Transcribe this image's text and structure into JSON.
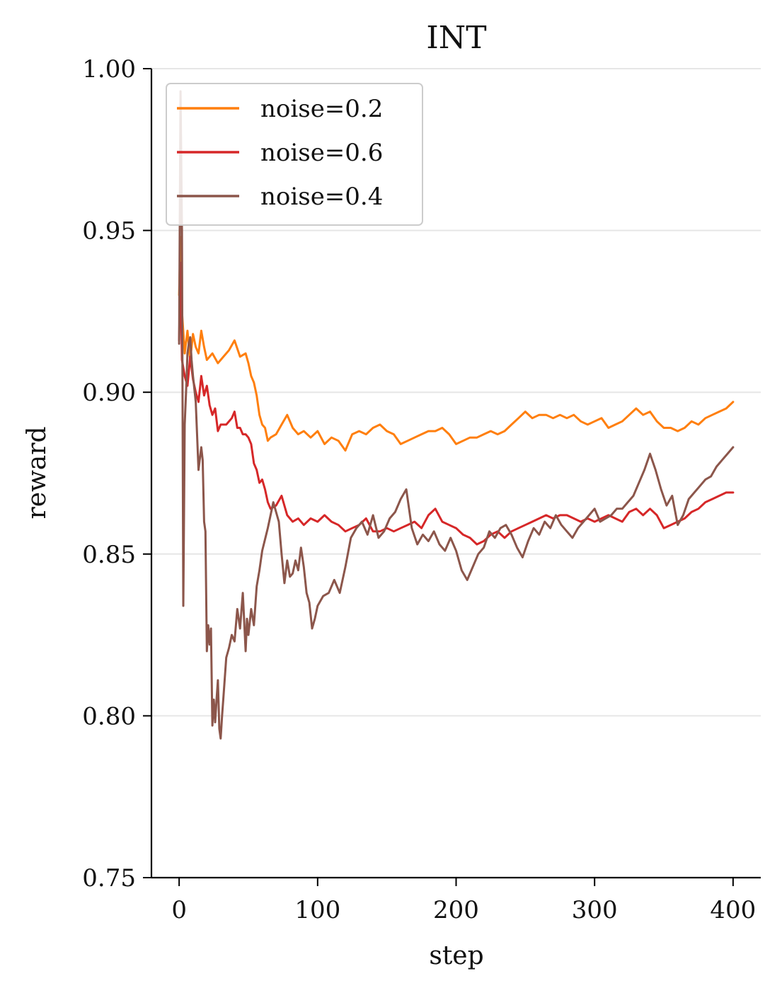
{
  "chart_data": {
    "type": "line",
    "title": "INT",
    "xlabel": "step",
    "ylabel": "reward",
    "xlim": [
      -20,
      420
    ],
    "ylim": [
      0.75,
      1.0
    ],
    "xticks": [
      0,
      100,
      200,
      300,
      400
    ],
    "xtick_labels": [
      "0",
      "100",
      "200",
      "300",
      "400"
    ],
    "yticks": [
      0.75,
      0.8,
      0.85,
      0.9,
      0.95,
      1.0
    ],
    "ytick_labels": [
      "0.75",
      "0.80",
      "0.85",
      "0.90",
      "0.95",
      "1.00"
    ],
    "grid": "horizontal",
    "legend_position": "top-left",
    "series": [
      {
        "name": "noise=0.2",
        "color": "#ff7f0e",
        "x": [
          0,
          1,
          2,
          4,
          6,
          8,
          10,
          12,
          14,
          16,
          18,
          20,
          24,
          28,
          32,
          36,
          40,
          44,
          48,
          50,
          52,
          54,
          56,
          58,
          60,
          62,
          64,
          66,
          70,
          74,
          78,
          82,
          86,
          90,
          95,
          100,
          105,
          110,
          115,
          120,
          125,
          130,
          135,
          140,
          145,
          150,
          155,
          160,
          165,
          170,
          175,
          180,
          185,
          190,
          195,
          200,
          205,
          210,
          215,
          220,
          225,
          230,
          235,
          240,
          245,
          250,
          255,
          260,
          265,
          270,
          275,
          280,
          285,
          290,
          295,
          300,
          305,
          310,
          315,
          320,
          325,
          330,
          335,
          340,
          345,
          350,
          355,
          360,
          365,
          370,
          375,
          380,
          385,
          390,
          395,
          400
        ],
        "values": [
          0.93,
          0.948,
          0.925,
          0.912,
          0.919,
          0.91,
          0.918,
          0.914,
          0.912,
          0.919,
          0.914,
          0.91,
          0.912,
          0.909,
          0.911,
          0.913,
          0.916,
          0.911,
          0.912,
          0.909,
          0.905,
          0.903,
          0.899,
          0.893,
          0.89,
          0.889,
          0.885,
          0.886,
          0.887,
          0.89,
          0.893,
          0.889,
          0.887,
          0.888,
          0.886,
          0.888,
          0.884,
          0.886,
          0.885,
          0.882,
          0.887,
          0.888,
          0.887,
          0.889,
          0.89,
          0.888,
          0.887,
          0.884,
          0.885,
          0.886,
          0.887,
          0.888,
          0.888,
          0.889,
          0.887,
          0.884,
          0.885,
          0.886,
          0.886,
          0.887,
          0.888,
          0.887,
          0.888,
          0.89,
          0.892,
          0.894,
          0.892,
          0.893,
          0.893,
          0.892,
          0.893,
          0.892,
          0.893,
          0.891,
          0.89,
          0.891,
          0.892,
          0.889,
          0.89,
          0.891,
          0.893,
          0.895,
          0.893,
          0.894,
          0.891,
          0.889,
          0.889,
          0.888,
          0.889,
          0.891,
          0.89,
          0.892,
          0.893,
          0.894,
          0.895,
          0.897
        ]
      },
      {
        "name": "noise=0.6",
        "color": "#d62728",
        "x": [
          0,
          1,
          2,
          4,
          6,
          8,
          10,
          12,
          14,
          16,
          18,
          20,
          22,
          24,
          26,
          28,
          30,
          34,
          38,
          40,
          42,
          44,
          46,
          48,
          50,
          52,
          54,
          56,
          58,
          60,
          62,
          64,
          66,
          70,
          74,
          78,
          82,
          86,
          90,
          95,
          100,
          105,
          110,
          115,
          120,
          125,
          130,
          135,
          140,
          145,
          150,
          155,
          160,
          165,
          170,
          175,
          180,
          185,
          190,
          195,
          200,
          205,
          210,
          215,
          220,
          225,
          230,
          235,
          240,
          245,
          250,
          255,
          260,
          265,
          270,
          275,
          280,
          285,
          290,
          295,
          300,
          305,
          310,
          315,
          320,
          325,
          330,
          335,
          340,
          345,
          350,
          355,
          360,
          365,
          370,
          375,
          380,
          385,
          390,
          395,
          400
        ],
        "values": [
          0.916,
          0.94,
          0.91,
          0.905,
          0.902,
          0.911,
          0.904,
          0.9,
          0.897,
          0.905,
          0.899,
          0.902,
          0.896,
          0.893,
          0.895,
          0.888,
          0.89,
          0.89,
          0.892,
          0.894,
          0.889,
          0.889,
          0.887,
          0.887,
          0.886,
          0.884,
          0.878,
          0.876,
          0.872,
          0.873,
          0.87,
          0.866,
          0.864,
          0.865,
          0.868,
          0.862,
          0.86,
          0.861,
          0.859,
          0.861,
          0.86,
          0.862,
          0.86,
          0.859,
          0.857,
          0.858,
          0.859,
          0.861,
          0.857,
          0.857,
          0.858,
          0.857,
          0.858,
          0.859,
          0.86,
          0.858,
          0.862,
          0.864,
          0.86,
          0.859,
          0.858,
          0.856,
          0.855,
          0.853,
          0.854,
          0.856,
          0.857,
          0.855,
          0.857,
          0.858,
          0.859,
          0.86,
          0.861,
          0.862,
          0.861,
          0.862,
          0.862,
          0.861,
          0.86,
          0.861,
          0.86,
          0.861,
          0.862,
          0.861,
          0.86,
          0.863,
          0.864,
          0.862,
          0.864,
          0.862,
          0.858,
          0.859,
          0.86,
          0.861,
          0.863,
          0.864,
          0.866,
          0.867,
          0.868,
          0.869,
          0.869
        ]
      },
      {
        "name": "noise=0.4",
        "color": "#8c564b",
        "x": [
          0,
          1,
          2,
          3,
          4,
          5,
          6,
          7,
          8,
          9,
          10,
          12,
          14,
          16,
          17,
          18,
          19,
          20,
          21,
          22,
          23,
          24,
          25,
          26,
          27,
          28,
          29,
          30,
          31,
          32,
          34,
          36,
          38,
          40,
          42,
          44,
          46,
          48,
          49,
          50,
          52,
          54,
          56,
          58,
          60,
          64,
          68,
          72,
          74,
          76,
          78,
          80,
          82,
          84,
          86,
          88,
          90,
          92,
          94,
          96,
          98,
          100,
          104,
          108,
          112,
          116,
          120,
          124,
          128,
          132,
          136,
          140,
          144,
          148,
          152,
          156,
          160,
          164,
          168,
          172,
          176,
          180,
          184,
          188,
          192,
          196,
          200,
          204,
          208,
          212,
          216,
          220,
          224,
          228,
          232,
          236,
          240,
          244,
          248,
          252,
          256,
          260,
          264,
          268,
          272,
          276,
          280,
          284,
          288,
          292,
          296,
          300,
          304,
          308,
          312,
          316,
          320,
          324,
          328,
          332,
          336,
          340,
          344,
          348,
          352,
          356,
          360,
          364,
          368,
          372,
          376,
          380,
          384,
          388,
          392,
          396,
          400
        ],
        "values": [
          0.915,
          0.993,
          0.95,
          0.834,
          0.89,
          0.9,
          0.912,
          0.915,
          0.917,
          0.91,
          0.905,
          0.897,
          0.876,
          0.883,
          0.879,
          0.86,
          0.857,
          0.82,
          0.828,
          0.822,
          0.827,
          0.797,
          0.805,
          0.798,
          0.805,
          0.811,
          0.796,
          0.793,
          0.8,
          0.806,
          0.818,
          0.821,
          0.825,
          0.823,
          0.833,
          0.827,
          0.838,
          0.82,
          0.83,
          0.825,
          0.833,
          0.828,
          0.84,
          0.845,
          0.851,
          0.858,
          0.866,
          0.86,
          0.85,
          0.841,
          0.848,
          0.843,
          0.844,
          0.848,
          0.845,
          0.852,
          0.846,
          0.838,
          0.835,
          0.827,
          0.83,
          0.834,
          0.837,
          0.838,
          0.842,
          0.838,
          0.846,
          0.855,
          0.858,
          0.86,
          0.856,
          0.862,
          0.855,
          0.857,
          0.861,
          0.863,
          0.867,
          0.87,
          0.858,
          0.853,
          0.856,
          0.854,
          0.857,
          0.853,
          0.851,
          0.855,
          0.851,
          0.845,
          0.842,
          0.846,
          0.85,
          0.852,
          0.857,
          0.855,
          0.858,
          0.859,
          0.856,
          0.852,
          0.849,
          0.854,
          0.858,
          0.856,
          0.86,
          0.858,
          0.862,
          0.859,
          0.857,
          0.855,
          0.858,
          0.86,
          0.862,
          0.864,
          0.86,
          0.861,
          0.862,
          0.864,
          0.864,
          0.866,
          0.868,
          0.872,
          0.876,
          0.881,
          0.876,
          0.87,
          0.865,
          0.868,
          0.859,
          0.862,
          0.867,
          0.869,
          0.871,
          0.873,
          0.874,
          0.877,
          0.879,
          0.881,
          0.883
        ]
      }
    ]
  }
}
